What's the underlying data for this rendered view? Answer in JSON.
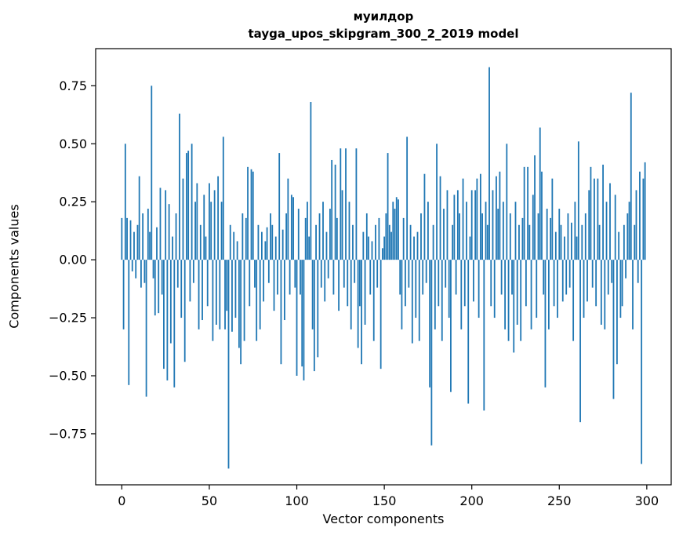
{
  "figure": {
    "title_line1": "муилдор",
    "title_line2": "tayga_upos_skipgram_300_2_2019 model",
    "xlabel": "Vector components",
    "ylabel": "Components values"
  },
  "chart_data": {
    "type": "bar",
    "title": "муилдор — tayga_upos_skipgram_300_2_2019 model",
    "xlabel": "Vector components",
    "ylabel": "Components values",
    "bar_color": "#1f77b4",
    "grid": false,
    "legend": "none",
    "xlim": [
      -14.95,
      313.95
    ],
    "ylim": [
      -0.97,
      0.91
    ],
    "xticks": [
      0,
      50,
      100,
      150,
      200,
      250,
      300
    ],
    "yticks": [
      -0.75,
      -0.5,
      -0.25,
      0,
      0.25,
      0.5,
      0.75
    ],
    "n_components": 300,
    "values": [
      0.18,
      -0.3,
      0.5,
      0.18,
      -0.54,
      0.17,
      -0.05,
      0.12,
      -0.08,
      0.15,
      0.36,
      -0.12,
      0.2,
      -0.1,
      -0.59,
      0.22,
      0.12,
      0.75,
      -0.08,
      -0.24,
      0.14,
      -0.23,
      0.31,
      -0.15,
      -0.47,
      0.3,
      -0.52,
      0.24,
      -0.36,
      0.1,
      -0.55,
      0.2,
      -0.12,
      0.63,
      -0.25,
      0.35,
      -0.44,
      0.46,
      0.47,
      -0.18,
      0.5,
      -0.1,
      0.25,
      0.33,
      -0.3,
      0.15,
      -0.26,
      0.28,
      0.1,
      -0.2,
      0.33,
      0.25,
      -0.35,
      0.3,
      -0.28,
      0.36,
      -0.3,
      0.25,
      0.53,
      -0.3,
      -0.22,
      -0.9,
      0.15,
      -0.31,
      0.12,
      -0.25,
      0.08,
      -0.38,
      -0.45,
      0.2,
      -0.35,
      0.18,
      0.4,
      -0.2,
      0.39,
      0.38,
      -0.12,
      -0.35,
      0.15,
      -0.3,
      0.12,
      -0.18,
      0.08,
      0.14,
      -0.1,
      0.2,
      0.15,
      -0.22,
      0.1,
      -0.15,
      0.46,
      -0.45,
      0.13,
      -0.26,
      0.2,
      0.35,
      -0.15,
      0.28,
      0.27,
      -0.12,
      -0.5,
      0.22,
      -0.15,
      -0.46,
      -0.52,
      0.18,
      0.25,
      0.1,
      0.68,
      -0.3,
      -0.48,
      0.15,
      -0.42,
      0.2,
      -0.12,
      0.25,
      -0.18,
      0.12,
      -0.08,
      0.22,
      0.43,
      -0.15,
      0.41,
      0.18,
      -0.22,
      0.48,
      0.3,
      -0.12,
      0.48,
      -0.2,
      0.25,
      -0.3,
      0.15,
      -0.1,
      0.48,
      -0.38,
      -0.2,
      -0.45,
      0.12,
      -0.28,
      0.2,
      0.1,
      -0.15,
      0.08,
      -0.35,
      0.15,
      -0.12,
      0.18,
      -0.47,
      0.05,
      0.1,
      0.2,
      0.46,
      0.15,
      0.12,
      0.25,
      0.22,
      0.27,
      0.26,
      -0.15,
      -0.3,
      0.18,
      -0.2,
      0.53,
      -0.12,
      0.15,
      -0.36,
      0.1,
      -0.25,
      0.12,
      -0.35,
      0.2,
      -0.15,
      0.37,
      -0.1,
      0.25,
      -0.55,
      -0.8,
      0.15,
      -0.3,
      0.5,
      -0.2,
      0.36,
      -0.35,
      0.22,
      -0.12,
      0.3,
      -0.25,
      -0.57,
      0.15,
      0.28,
      -0.15,
      0.3,
      0.2,
      -0.3,
      0.35,
      -0.2,
      0.25,
      -0.62,
      0.1,
      0.3,
      -0.18,
      0.3,
      0.35,
      -0.25,
      0.37,
      0.2,
      -0.65,
      0.25,
      0.15,
      0.83,
      -0.2,
      0.3,
      -0.25,
      0.36,
      0.22,
      0.38,
      -0.15,
      0.25,
      -0.3,
      0.5,
      -0.35,
      0.2,
      -0.15,
      -0.4,
      0.25,
      -0.28,
      0.15,
      -0.35,
      0.18,
      0.4,
      -0.2,
      0.4,
      0.15,
      -0.3,
      0.28,
      0.45,
      -0.25,
      0.2,
      0.57,
      0.38,
      -0.15,
      -0.55,
      0.22,
      -0.3,
      0.18,
      0.35,
      -0.2,
      0.12,
      -0.25,
      0.22,
      0.15,
      -0.18,
      0.1,
      -0.15,
      0.2,
      -0.12,
      0.16,
      -0.35,
      0.25,
      0.1,
      0.51,
      -0.7,
      0.15,
      -0.25,
      0.2,
      -0.18,
      0.3,
      0.4,
      -0.12,
      0.35,
      -0.2,
      0.35,
      0.15,
      -0.28,
      0.41,
      -0.3,
      0.25,
      -0.15,
      0.33,
      -0.1,
      -0.6,
      0.28,
      -0.45,
      0.12,
      -0.25,
      -0.2,
      0.15,
      -0.08,
      0.2,
      0.25,
      0.72,
      -0.3,
      0.15,
      0.3,
      -0.1,
      0.38,
      -0.88,
      0.35,
      0.42
    ]
  }
}
